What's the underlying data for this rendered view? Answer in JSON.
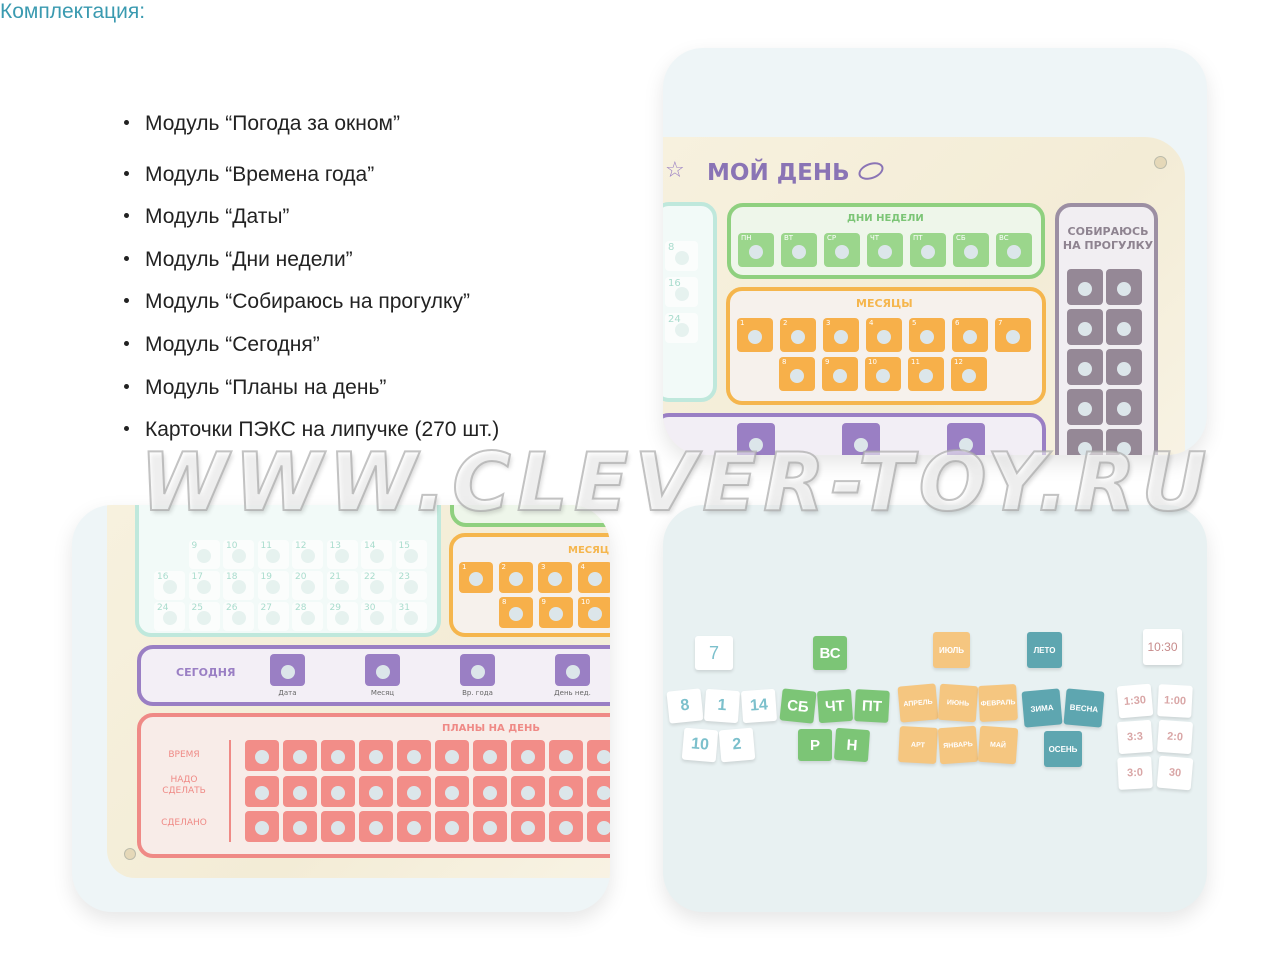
{
  "heading": "Комплектация:",
  "items": [
    "Модуль “Погода за окном”",
    "Модуль “Времена года”",
    "Модуль “Даты”",
    "Модуль “Дни недели”",
    "Модуль “Собираюсь на прогулку”",
    "Модуль “Сегодня”",
    "Модуль “Планы на день”",
    "Карточки ПЭКС на липучке (270 шт.)"
  ],
  "board": {
    "title": "МОЙ ДЕНЬ",
    "weekdays_title": "ДНИ НЕДЕЛИ",
    "weekdays": [
      "ПН",
      "ВТ",
      "СР",
      "ЧТ",
      "ПТ",
      "СБ",
      "ВС"
    ],
    "months_title": "МЕСЯЦЫ",
    "months": [
      "1",
      "2",
      "3",
      "4",
      "5",
      "6",
      "7",
      "8",
      "9",
      "10",
      "11",
      "12"
    ],
    "walk_title": "СОБИРАЮСЬ НА ПРОГУЛКУ",
    "dates_top": [
      "8",
      "16",
      "24"
    ],
    "dates_bottom": [
      "9",
      "10",
      "11",
      "12",
      "13",
      "14",
      "15",
      "16",
      "17",
      "18",
      "19",
      "20",
      "21",
      "22",
      "23",
      "24",
      "25",
      "26",
      "27",
      "28",
      "29",
      "30",
      "31"
    ],
    "months_title_cropped": "МЕСЯЦЫ",
    "today_title": "СЕГОДНЯ",
    "today_labels": [
      "Дата",
      "Месяц",
      "Вр. года",
      "День нед."
    ],
    "plans_title": "ПЛАНЫ НА ДЕНЬ",
    "plans_rows": [
      "ВРЕМЯ",
      "НАДО СДЕЛАТЬ",
      "СДЕЛАНО"
    ]
  },
  "cards": {
    "date": "7",
    "weekday": "ВС",
    "month": "ИЮЛЬ",
    "season": "ЛЕТО",
    "time": "10:30",
    "pile_numbers": [
      "8",
      "1",
      "14",
      "10",
      "2"
    ],
    "pile_days": [
      "СБ",
      "ЧТ",
      "ПТ",
      "Р",
      "Н"
    ],
    "pile_months": [
      "АПРЕЛЬ",
      "ИЮНЬ",
      "ФЕВРАЛЬ",
      "АРТ",
      "ЯНВАРЬ",
      "МАЙ"
    ],
    "pile_seasons": [
      "ЗИМА",
      "ВЕСНА",
      "ОСЕНЬ"
    ],
    "pile_times": [
      "1:30",
      "1:00",
      "3:3",
      "2:0",
      "3:0",
      "30"
    ]
  },
  "colors": {
    "heading": "#3a9ab0",
    "green": "#7cc576",
    "orange": "#f5b64d",
    "purple": "#9a7fc4",
    "walk": "#8e8390",
    "red": "#ef8a86",
    "teal": "#9fdcca",
    "season": "#5ea6b0"
  },
  "watermark": "WWW.CLEVER-TOY.RU"
}
